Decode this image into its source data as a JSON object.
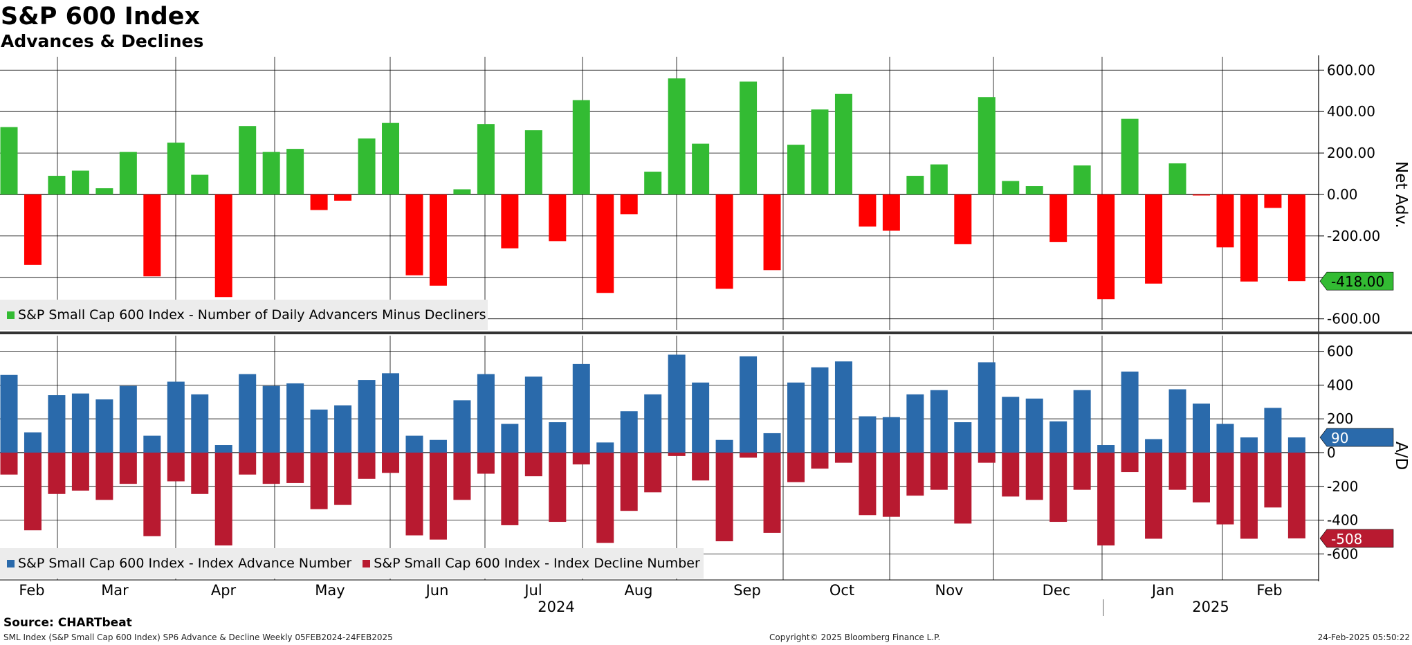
{
  "header": {
    "title": "S&P 600 Index",
    "subtitle": "Advances & Declines"
  },
  "footer": {
    "source": "Source: CHARTbeat",
    "left": "SML Index (S&P Small Cap 600 Index) SP6 Advance & Decline  Weekly 05FEB2024-24FEB2025",
    "middle": "Copyright© 2025 Bloomberg Finance L.P.",
    "right": "24-Feb-2025 05:50:22"
  },
  "colors": {
    "net_positive": "#33bb33",
    "net_negative": "#ff0000",
    "advances": "#2a6aab",
    "declines": "#b81a30",
    "tag_net": "#33bb33",
    "tag_adv": "#2a6aab",
    "tag_dec": "#b81a30"
  },
  "chart_data": [
    {
      "type": "bar",
      "panel": "top",
      "axis_label": "Net Adv.",
      "ylim": [
        -660,
        660
      ],
      "yticks": [
        600,
        400,
        200,
        0,
        -200,
        -400,
        -600
      ],
      "ytick_labels": [
        "600.00",
        "400.00",
        "200.00",
        "0.00",
        "-200.00",
        "",
        "-600.00"
      ],
      "series": [
        {
          "name": "S&P Small Cap 600 Index - Number of Daily Advancers Minus Decliners",
          "values": [
            325,
            -340,
            90,
            115,
            30,
            205,
            -395,
            250,
            95,
            -495,
            330,
            205,
            220,
            -75,
            -30,
            270,
            345,
            -390,
            -440,
            25,
            340,
            -260,
            310,
            -225,
            455,
            -475,
            -95,
            110,
            560,
            245,
            -455,
            545,
            -365,
            240,
            410,
            485,
            -155,
            -175,
            90,
            145,
            -240,
            470,
            65,
            40,
            -230,
            140,
            -505,
            365,
            -430,
            150,
            -5,
            -255,
            -420,
            -65,
            -418
          ]
        }
      ],
      "last_value_tag": "-418.00"
    },
    {
      "type": "bar",
      "panel": "bottom",
      "axis_label": "A/D",
      "ylim": [
        -680,
        660
      ],
      "yticks": [
        600,
        400,
        200,
        0,
        -200,
        -400,
        -600
      ],
      "ytick_labels": [
        "600",
        "400",
        "200",
        "0",
        "-200",
        "-400",
        "-600"
      ],
      "series": [
        {
          "name": "S&P Small Cap 600 Index - Index Advance Number",
          "values": [
            460,
            120,
            340,
            350,
            315,
            395,
            100,
            420,
            345,
            45,
            465,
            395,
            410,
            255,
            280,
            430,
            470,
            100,
            75,
            310,
            465,
            170,
            450,
            180,
            525,
            60,
            245,
            345,
            580,
            415,
            75,
            570,
            115,
            415,
            505,
            540,
            215,
            210,
            345,
            370,
            180,
            535,
            330,
            320,
            185,
            370,
            45,
            480,
            80,
            375,
            290,
            170,
            90,
            265,
            90
          ]
        },
        {
          "name": "S&P Small Cap 600 Index - Index Decline Number",
          "values": [
            -130,
            -460,
            -245,
            -225,
            -280,
            -185,
            -495,
            -170,
            -245,
            -550,
            -130,
            -185,
            -180,
            -335,
            -310,
            -155,
            -120,
            -490,
            -515,
            -280,
            -125,
            -430,
            -140,
            -410,
            -70,
            -535,
            -345,
            -235,
            -20,
            -165,
            -525,
            -30,
            -475,
            -175,
            -95,
            -60,
            -370,
            -380,
            -255,
            -220,
            -420,
            -60,
            -260,
            -280,
            -410,
            -220,
            -550,
            -115,
            -510,
            -220,
            -295,
            -425,
            -510,
            -325,
            -508
          ]
        }
      ],
      "last_value_tags": [
        "90",
        "-508"
      ]
    }
  ],
  "x_axis": {
    "months": [
      "Feb",
      "Mar",
      "Apr",
      "May",
      "Jun",
      "Jul",
      "Aug",
      "Sep",
      "Oct",
      "Nov",
      "Dec",
      "Jan",
      "Feb"
    ],
    "years": [
      "2024",
      "2025"
    ]
  }
}
